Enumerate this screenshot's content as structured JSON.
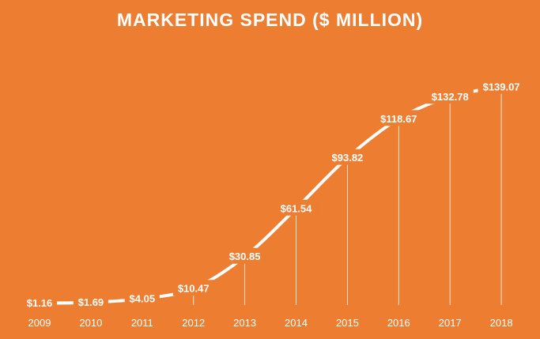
{
  "chart_data": {
    "type": "line",
    "title": "MARKETING SPEND ($ MILLION)",
    "categories": [
      "2009",
      "2010",
      "2011",
      "2012",
      "2013",
      "2014",
      "2015",
      "2016",
      "2017",
      "2018"
    ],
    "values": [
      1.16,
      1.69,
      4.05,
      10.47,
      30.85,
      61.54,
      93.82,
      118.67,
      132.78,
      139.07
    ],
    "data_labels": [
      "$1.16",
      "$1.69",
      "$4.05",
      "$10.47",
      "$30.85",
      "$61.54",
      "$93.82",
      "$118.67",
      "$132.78",
      "$139.07"
    ],
    "ylim": [
      0,
      145
    ],
    "grid": false,
    "legend": "none",
    "drop_lines": true,
    "colors": {
      "background": "#ED7D31",
      "line": "#FFFFFF",
      "text": "#FFFFFF"
    }
  }
}
